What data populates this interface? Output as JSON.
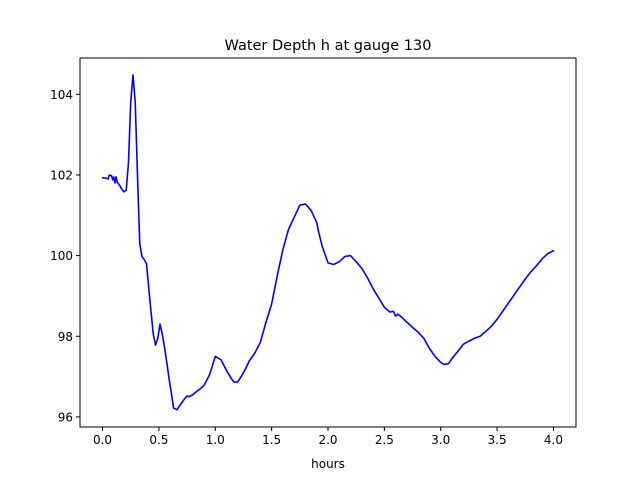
{
  "chart_data": {
    "type": "line",
    "title": "Water Depth h at gauge 130",
    "xlabel": "hours",
    "ylabel": "",
    "xlim": [
      -0.2,
      4.2
    ],
    "ylim": [
      95.75,
      104.9
    ],
    "xticks": [
      0.0,
      0.5,
      1.0,
      1.5,
      2.0,
      2.5,
      3.0,
      3.5,
      4.0
    ],
    "xtick_labels": [
      "0.0",
      "0.5",
      "1.0",
      "1.5",
      "2.0",
      "2.5",
      "3.0",
      "3.5",
      "4.0"
    ],
    "yticks": [
      96,
      98,
      100,
      102,
      104
    ],
    "ytick_labels": [
      "96",
      "98",
      "100",
      "102",
      "104"
    ],
    "grid": false,
    "series": [
      {
        "color": "#0000ff",
        "x": [
          0.0,
          0.03,
          0.05,
          0.06,
          0.08,
          0.09,
          0.1,
          0.11,
          0.12,
          0.13,
          0.15,
          0.17,
          0.19,
          0.21,
          0.23,
          0.25,
          0.27,
          0.29,
          0.31,
          0.33,
          0.35,
          0.37,
          0.39,
          0.42,
          0.45,
          0.47,
          0.49,
          0.51,
          0.53,
          0.55,
          0.57,
          0.59,
          0.61,
          0.63,
          0.66,
          0.69,
          0.72,
          0.75,
          0.77,
          0.8,
          0.83,
          0.86,
          0.9,
          0.95,
          1.0,
          1.05,
          1.1,
          1.15,
          1.17,
          1.2,
          1.23,
          1.27,
          1.3,
          1.35,
          1.4,
          1.45,
          1.5,
          1.55,
          1.6,
          1.65,
          1.7,
          1.75,
          1.8,
          1.85,
          1.9,
          1.92,
          1.95,
          1.98,
          2.0,
          2.05,
          2.1,
          2.15,
          2.2,
          2.25,
          2.3,
          2.35,
          2.4,
          2.45,
          2.5,
          2.55,
          2.58,
          2.6,
          2.62,
          2.65,
          2.7,
          2.75,
          2.8,
          2.85,
          2.9,
          2.95,
          3.0,
          3.03,
          3.07,
          3.1,
          3.15,
          3.2,
          3.25,
          3.3,
          3.35,
          3.4,
          3.45,
          3.5,
          3.55,
          3.6,
          3.65,
          3.7,
          3.75,
          3.8,
          3.85,
          3.9,
          3.95,
          4.0
        ],
        "y": [
          101.93,
          101.92,
          101.9,
          102.0,
          101.98,
          101.88,
          101.95,
          101.8,
          101.95,
          101.82,
          101.75,
          101.65,
          101.58,
          101.62,
          102.3,
          103.8,
          104.48,
          103.8,
          102.0,
          100.3,
          99.98,
          99.9,
          99.8,
          98.9,
          98.05,
          97.78,
          97.95,
          98.3,
          98.05,
          97.72,
          97.35,
          96.95,
          96.6,
          96.22,
          96.18,
          96.3,
          96.42,
          96.52,
          96.5,
          96.55,
          96.62,
          96.68,
          96.78,
          97.05,
          97.5,
          97.42,
          97.15,
          96.92,
          96.86,
          96.87,
          97.0,
          97.2,
          97.38,
          97.58,
          97.85,
          98.35,
          98.8,
          99.5,
          100.15,
          100.65,
          100.95,
          101.25,
          101.28,
          101.12,
          100.82,
          100.55,
          100.22,
          99.98,
          99.82,
          99.78,
          99.85,
          99.98,
          100.0,
          99.85,
          99.68,
          99.45,
          99.18,
          98.95,
          98.72,
          98.6,
          98.62,
          98.5,
          98.55,
          98.48,
          98.35,
          98.22,
          98.1,
          97.95,
          97.7,
          97.5,
          97.35,
          97.3,
          97.32,
          97.45,
          97.62,
          97.8,
          97.88,
          97.95,
          98.0,
          98.12,
          98.25,
          98.42,
          98.62,
          98.82,
          99.02,
          99.22,
          99.42,
          99.6,
          99.75,
          99.92,
          100.05,
          100.12
        ]
      }
    ]
  }
}
